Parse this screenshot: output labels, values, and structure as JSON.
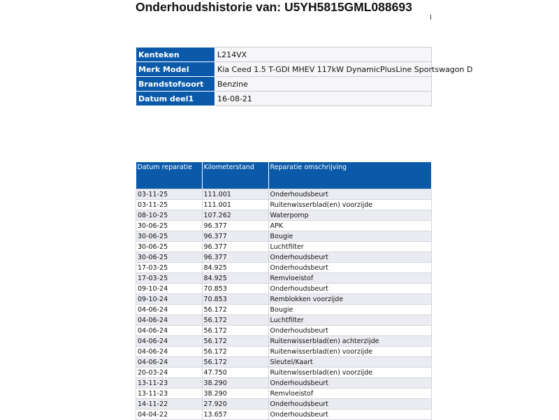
{
  "title": "Onderhoudshistorie van: U5YH5815GML088693",
  "vehicle": [
    {
      "label": "Kenteken",
      "value": "L214VX"
    },
    {
      "label": "Merk Model",
      "value": "Kia Ceed 1.5 T-GDI MHEV 117kW DynamicPlusLine Sportswagon D"
    },
    {
      "label": "Brandstofsoort",
      "value": "Benzine"
    },
    {
      "label": "Datum deel1",
      "value": "16-08-21"
    }
  ],
  "repairs": {
    "headers": [
      "Datum reparatie",
      "Kilometerstand",
      "Reparatie omschrijving"
    ],
    "rows": [
      [
        "03-11-25",
        "111.001",
        "Onderhoudsbeurt"
      ],
      [
        "03-11-25",
        "111.001",
        "Ruitenwisserblad(en) voorzijde"
      ],
      [
        "08-10-25",
        "107.262",
        "Waterpomp"
      ],
      [
        "30-06-25",
        "96.377",
        "APK"
      ],
      [
        "30-06-25",
        "96.377",
        "Bougie"
      ],
      [
        "30-06-25",
        "96.377",
        "Luchtfilter"
      ],
      [
        "30-06-25",
        "96.377",
        "Onderhoudsbeurt"
      ],
      [
        "17-03-25",
        "84.925",
        "Onderhoudsbeurt"
      ],
      [
        "17-03-25",
        "84.925",
        "Remvloeistof"
      ],
      [
        "09-10-24",
        "70.853",
        "Onderhoudsbeurt"
      ],
      [
        "09-10-24",
        "70.853",
        "Remblokken voorzijde"
      ],
      [
        "04-06-24",
        "56.172",
        "Bougie"
      ],
      [
        "04-06-24",
        "56.172",
        "Luchtfilter"
      ],
      [
        "04-06-24",
        "56.172",
        "Onderhoudsbeurt"
      ],
      [
        "04-06-24",
        "56.172",
        "Ruitenwisserblad(en) achterzijde"
      ],
      [
        "04-06-24",
        "56.172",
        "Ruitenwisserblad(en) voorzijde"
      ],
      [
        "04-06-24",
        "56.172",
        "Sleutel/Kaart"
      ],
      [
        "20-03-24",
        "47.750",
        "Ruitenwisserblad(en) voorzijde"
      ],
      [
        "13-11-23",
        "38.290",
        "Onderhoudsbeurt"
      ],
      [
        "13-11-23",
        "38.290",
        "Remvloeistof"
      ],
      [
        "14-11-22",
        "27.920",
        "Onderhoudsbeurt"
      ],
      [
        "04-04-22",
        "13.657",
        "Onderhoudsbeurt"
      ]
    ]
  },
  "colors": {
    "header_blue": "#0b5aaa",
    "row_alt": "#ebecf2"
  }
}
